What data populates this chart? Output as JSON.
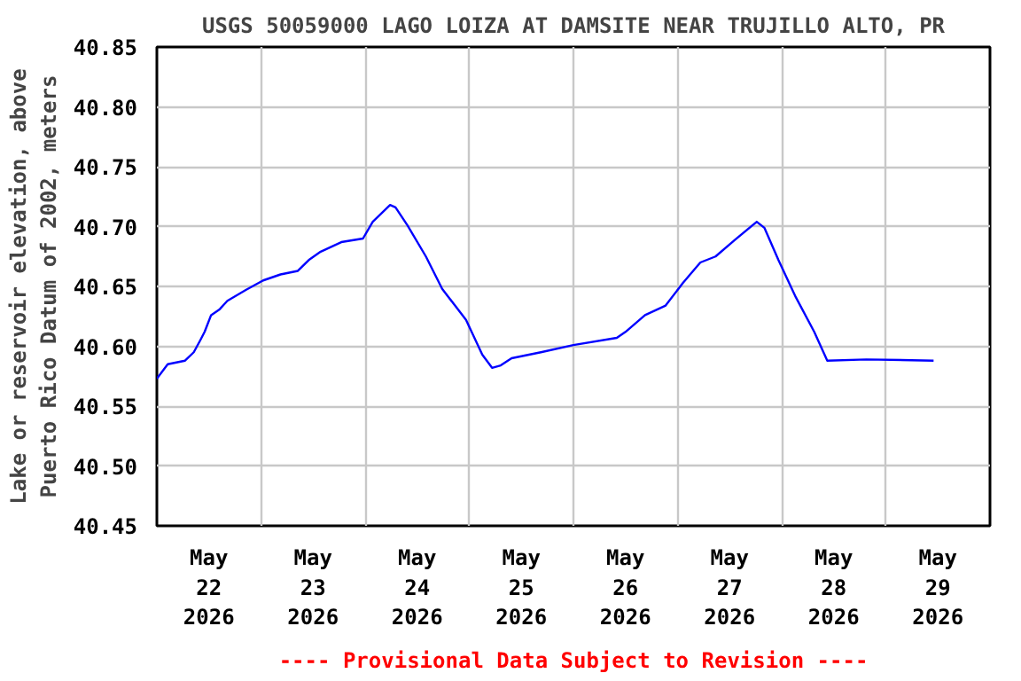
{
  "chart_data": {
    "type": "line",
    "title": "USGS 50059000 LAGO LOIZA AT DAMSITE NEAR TRUJILLO ALTO, PR",
    "ylabel": "Lake or reservoir elevation, above\nPuerto Rico Datum of 2002, meters",
    "annotations": [
      "---- Provisional Data Subject to Revision ----"
    ],
    "x": [
      "2026-05-22T00:00",
      "2026-05-22T02:30",
      "2026-05-22T06:30",
      "2026-05-22T08:30",
      "2026-05-22T10:00",
      "2026-05-22T11:00",
      "2026-05-22T12:30",
      "2026-05-22T14:30",
      "2026-05-22T16:15",
      "2026-05-22T20:30",
      "2026-05-23T00:30",
      "2026-05-23T04:30",
      "2026-05-23T08:30",
      "2026-05-23T11:00",
      "2026-05-23T13:45",
      "2026-05-23T18:30",
      "2026-05-23T23:30",
      "2026-05-24T01:45",
      "2026-05-24T05:45",
      "2026-05-24T07:00",
      "2026-05-24T09:45",
      "2026-05-24T14:00",
      "2026-05-24T17:45",
      "2026-05-24T23:15",
      "2026-05-25T03:00",
      "2026-05-25T05:15",
      "2026-05-25T07:15",
      "2026-05-25T09:45",
      "2026-05-25T16:30",
      "2026-05-26T00:00",
      "2026-05-26T10:00",
      "2026-05-26T12:00",
      "2026-05-26T16:30",
      "2026-05-26T21:15",
      "2026-05-27T01:15",
      "2026-05-27T05:15",
      "2026-05-27T08:45",
      "2026-05-27T13:15",
      "2026-05-27T18:15",
      "2026-05-27T20:00",
      "2026-05-27T23:15",
      "2026-05-28T03:15",
      "2026-05-28T07:30",
      "2026-05-28T10:30",
      "2026-05-28T19:30",
      "2026-05-29T11:00"
    ],
    "series": [
      {
        "color": "#0000ff",
        "values": [
          40.573,
          40.585,
          40.588,
          40.595,
          40.605,
          40.612,
          40.626,
          40.631,
          40.638,
          40.647,
          40.655,
          40.66,
          40.663,
          40.672,
          40.679,
          40.687,
          40.69,
          40.704,
          40.718,
          40.716,
          40.701,
          40.675,
          40.648,
          40.622,
          40.593,
          40.582,
          40.584,
          40.59,
          40.595,
          40.601,
          40.607,
          40.612,
          40.626,
          40.634,
          40.653,
          40.67,
          40.675,
          40.689,
          40.704,
          40.699,
          40.672,
          40.641,
          40.612,
          40.588,
          40.589,
          40.588
        ]
      }
    ],
    "xlim": [
      "2026-05-22T00:00",
      "2026-05-30T00:00"
    ],
    "xticks": [
      {
        "value": "2026-05-22T00:00",
        "label": null
      },
      {
        "value": "2026-05-22T12:00",
        "label": "May\n22\n2026"
      },
      {
        "value": "2026-05-23T00:00",
        "label": null
      },
      {
        "value": "2026-05-23T12:00",
        "label": "May\n23\n2026"
      },
      {
        "value": "2026-05-24T00:00",
        "label": null
      },
      {
        "value": "2026-05-24T12:00",
        "label": "May\n24\n2026"
      },
      {
        "value": "2026-05-25T00:00",
        "label": null
      },
      {
        "value": "2026-05-25T12:00",
        "label": "May\n25\n2026"
      },
      {
        "value": "2026-05-26T00:00",
        "label": null
      },
      {
        "value": "2026-05-26T12:00",
        "label": "May\n26\n2026"
      },
      {
        "value": "2026-05-27T00:00",
        "label": null
      },
      {
        "value": "2026-05-27T12:00",
        "label": "May\n27\n2026"
      },
      {
        "value": "2026-05-28T00:00",
        "label": null
      },
      {
        "value": "2026-05-28T12:00",
        "label": "May\n28\n2026"
      },
      {
        "value": "2026-05-29T00:00",
        "label": null
      },
      {
        "value": "2026-05-29T12:00",
        "label": "May\n29\n2026"
      },
      {
        "value": "2026-05-30T00:00",
        "label": null
      }
    ],
    "ylim": [
      40.45,
      40.85
    ],
    "yticks": [
      {
        "value": 40.45,
        "label": "40.45"
      },
      {
        "value": 40.5,
        "label": "40.50"
      },
      {
        "value": 40.55,
        "label": "40.55"
      },
      {
        "value": 40.6,
        "label": "40.60"
      },
      {
        "value": 40.65,
        "label": "40.65"
      },
      {
        "value": 40.7,
        "label": "40.70"
      },
      {
        "value": 40.75,
        "label": "40.75"
      },
      {
        "value": 40.8,
        "label": "40.80"
      },
      {
        "value": 40.85,
        "label": "40.85"
      }
    ],
    "grid": true,
    "marker": "none",
    "line_style": "solid"
  }
}
